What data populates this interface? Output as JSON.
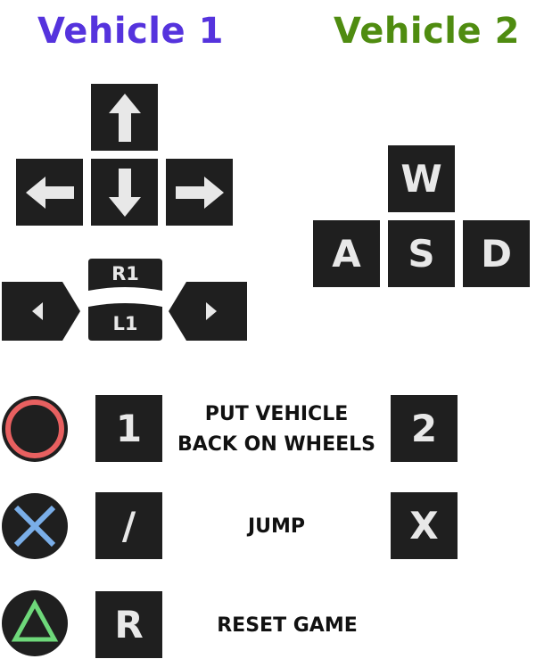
{
  "vehicle1": {
    "title": "Vehicle 1",
    "color": "#5533dd"
  },
  "vehicle2": {
    "title": "Vehicle 2",
    "color": "#4f8c10"
  },
  "arrow_keys": {
    "up": "arrow-up-icon",
    "down": "arrow-down-icon",
    "left": "arrow-left-icon",
    "right": "arrow-right-icon"
  },
  "wasd": {
    "w": "W",
    "a": "A",
    "s": "S",
    "d": "D"
  },
  "shoulder": {
    "r1": "R1",
    "l1": "L1"
  },
  "controls": [
    {
      "gamepad_icon": "circle-button-icon",
      "key1": "1",
      "action_line1": "PUT VEHICLE",
      "action_line2": "BACK ON WHEELS",
      "key2": "2"
    },
    {
      "gamepad_icon": "cross-button-icon",
      "key1": "/",
      "action": "JUMP",
      "key2": "X"
    },
    {
      "gamepad_icon": "triangle-button-icon",
      "key1": "R",
      "action": "RESET GAME"
    }
  ],
  "colors": {
    "key_bg": "#1f1f1f",
    "key_fg": "#e8e8e8",
    "circle": "#e86060",
    "cross": "#7aaee8",
    "triangle": "#6ed87a"
  }
}
